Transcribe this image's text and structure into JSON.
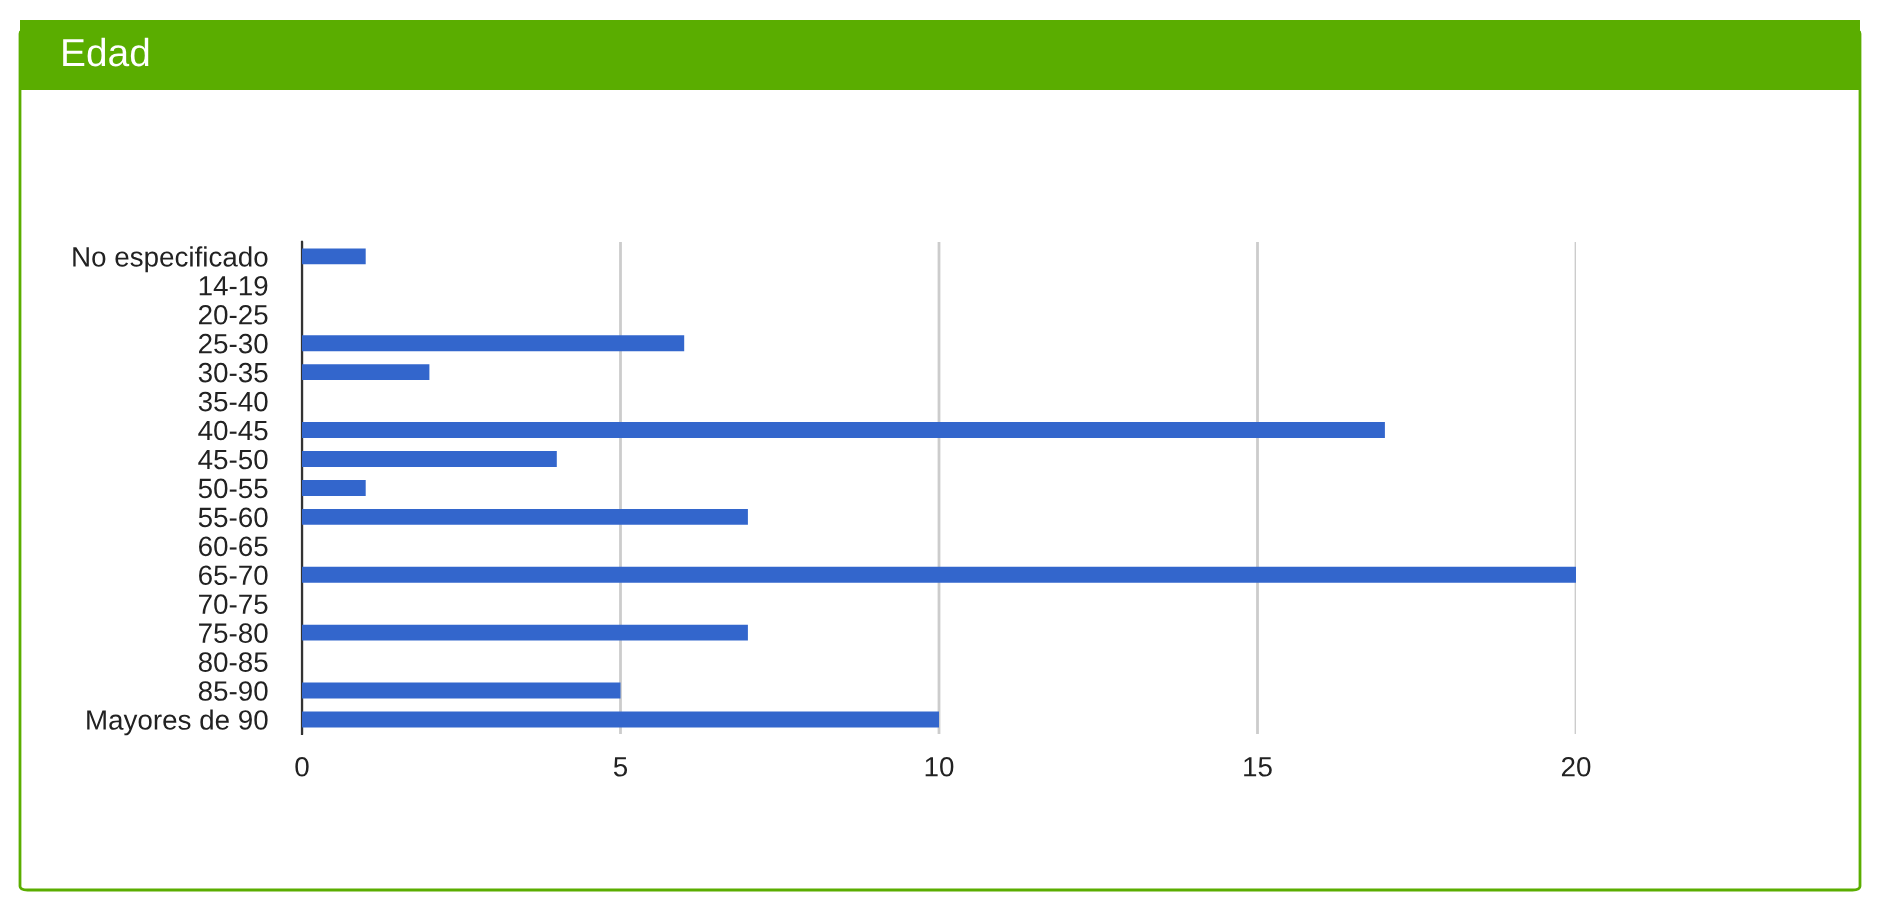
{
  "chart_data": {
    "type": "bar",
    "orientation": "horizontal",
    "title": "Edad",
    "categories": [
      "No especificado",
      "14-19",
      "20-25",
      "25-30",
      "30-35",
      "35-40",
      "40-45",
      "45-50",
      "50-55",
      "55-60",
      "60-65",
      "65-70",
      "70-75",
      "75-80",
      "80-85",
      "85-90",
      "Mayores de 90"
    ],
    "values": [
      1,
      0,
      0,
      6,
      2,
      0,
      17,
      4,
      1,
      7,
      0,
      20,
      0,
      7,
      0,
      5,
      10
    ],
    "color": "#3366cc",
    "xlim": [
      0,
      20
    ],
    "xticks": [
      0,
      5,
      10,
      15,
      20
    ],
    "grid": "x",
    "legend": false
  }
}
